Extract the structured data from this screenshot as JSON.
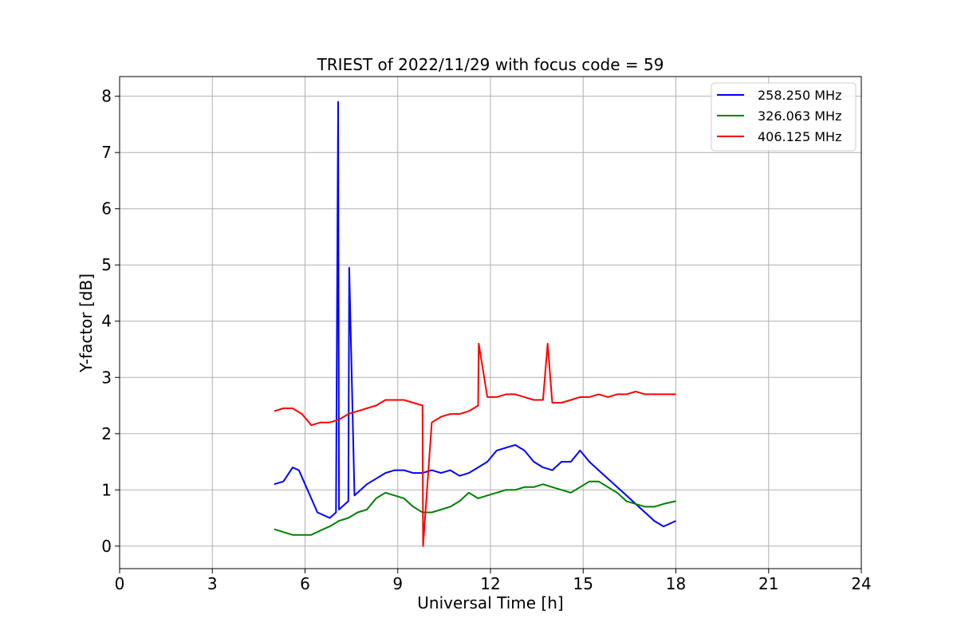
{
  "chart_data": {
    "type": "line",
    "title": "TRIEST of 2022/11/29 with focus code = 59",
    "xlabel": "Universal Time [h]",
    "ylabel": "Y-factor [dB]",
    "xlim": [
      0,
      24
    ],
    "ylim": [
      -0.4,
      8.35
    ],
    "xticks": [
      "0",
      "3",
      "6",
      "9",
      "12",
      "15",
      "18",
      "21",
      "24"
    ],
    "yticks": [
      "0",
      "1",
      "2",
      "3",
      "4",
      "5",
      "6",
      "7",
      "8"
    ],
    "grid": true,
    "legend_position": "top-right",
    "series": [
      {
        "name": "258.250 MHz",
        "color": "#0000ff",
        "x": [
          5.0,
          5.3,
          5.6,
          5.8,
          6.0,
          6.2,
          6.4,
          6.6,
          6.8,
          7.0,
          7.07,
          7.1,
          7.2,
          7.4,
          7.43,
          7.6,
          7.8,
          8.0,
          8.3,
          8.6,
          8.9,
          9.2,
          9.5,
          9.8,
          10.1,
          10.4,
          10.7,
          11.0,
          11.3,
          11.6,
          11.9,
          12.2,
          12.5,
          12.8,
          13.1,
          13.4,
          13.7,
          14.0,
          14.3,
          14.6,
          14.9,
          15.2,
          15.5,
          15.8,
          16.1,
          16.4,
          16.7,
          17.0,
          17.3,
          17.6,
          18.0
        ],
        "y": [
          1.1,
          1.15,
          1.4,
          1.35,
          1.1,
          0.85,
          0.6,
          0.55,
          0.5,
          0.6,
          7.9,
          0.65,
          0.7,
          0.8,
          4.95,
          0.9,
          1.0,
          1.1,
          1.2,
          1.3,
          1.35,
          1.35,
          1.3,
          1.3,
          1.35,
          1.3,
          1.35,
          1.25,
          1.3,
          1.4,
          1.5,
          1.7,
          1.75,
          1.8,
          1.7,
          1.5,
          1.4,
          1.35,
          1.5,
          1.5,
          1.7,
          1.5,
          1.35,
          1.2,
          1.05,
          0.9,
          0.75,
          0.6,
          0.45,
          0.35,
          0.45
        ]
      },
      {
        "name": "326.063 MHz",
        "color": "#008000",
        "x": [
          5.0,
          5.3,
          5.6,
          5.9,
          6.2,
          6.5,
          6.8,
          7.1,
          7.4,
          7.7,
          8.0,
          8.3,
          8.6,
          8.9,
          9.2,
          9.5,
          9.8,
          10.1,
          10.4,
          10.7,
          11.0,
          11.3,
          11.6,
          11.9,
          12.2,
          12.5,
          12.8,
          13.1,
          13.4,
          13.7,
          14.0,
          14.3,
          14.6,
          14.9,
          15.2,
          15.5,
          15.8,
          16.1,
          16.4,
          16.7,
          17.0,
          17.3,
          17.6,
          18.0
        ],
        "y": [
          0.3,
          0.25,
          0.2,
          0.2,
          0.2,
          0.28,
          0.35,
          0.45,
          0.5,
          0.6,
          0.65,
          0.85,
          0.95,
          0.9,
          0.85,
          0.7,
          0.6,
          0.6,
          0.65,
          0.7,
          0.8,
          0.95,
          0.85,
          0.9,
          0.95,
          1.0,
          1.0,
          1.05,
          1.05,
          1.1,
          1.05,
          1.0,
          0.95,
          1.05,
          1.15,
          1.15,
          1.05,
          0.95,
          0.8,
          0.75,
          0.7,
          0.7,
          0.75,
          0.8
        ]
      },
      {
        "name": "406.125 MHz",
        "color": "#ff0000",
        "x": [
          5.0,
          5.3,
          5.6,
          5.9,
          6.2,
          6.5,
          6.8,
          7.1,
          7.4,
          7.7,
          8.0,
          8.3,
          8.6,
          8.9,
          9.2,
          9.5,
          9.8,
          9.82,
          10.1,
          10.4,
          10.7,
          11.0,
          11.3,
          11.6,
          11.62,
          11.9,
          12.2,
          12.5,
          12.8,
          13.1,
          13.4,
          13.7,
          13.85,
          14.0,
          14.3,
          14.6,
          14.9,
          15.2,
          15.5,
          15.8,
          16.1,
          16.4,
          16.7,
          17.0,
          17.3,
          17.6,
          18.0
        ],
        "y": [
          2.4,
          2.45,
          2.45,
          2.35,
          2.15,
          2.2,
          2.2,
          2.25,
          2.35,
          2.4,
          2.45,
          2.5,
          2.6,
          2.6,
          2.6,
          2.55,
          2.5,
          0.0,
          2.2,
          2.3,
          2.35,
          2.35,
          2.4,
          2.5,
          3.6,
          2.65,
          2.65,
          2.7,
          2.7,
          2.65,
          2.6,
          2.6,
          3.6,
          2.55,
          2.55,
          2.6,
          2.65,
          2.65,
          2.7,
          2.65,
          2.7,
          2.7,
          2.75,
          2.7,
          2.7,
          2.7,
          2.7
        ]
      }
    ]
  }
}
